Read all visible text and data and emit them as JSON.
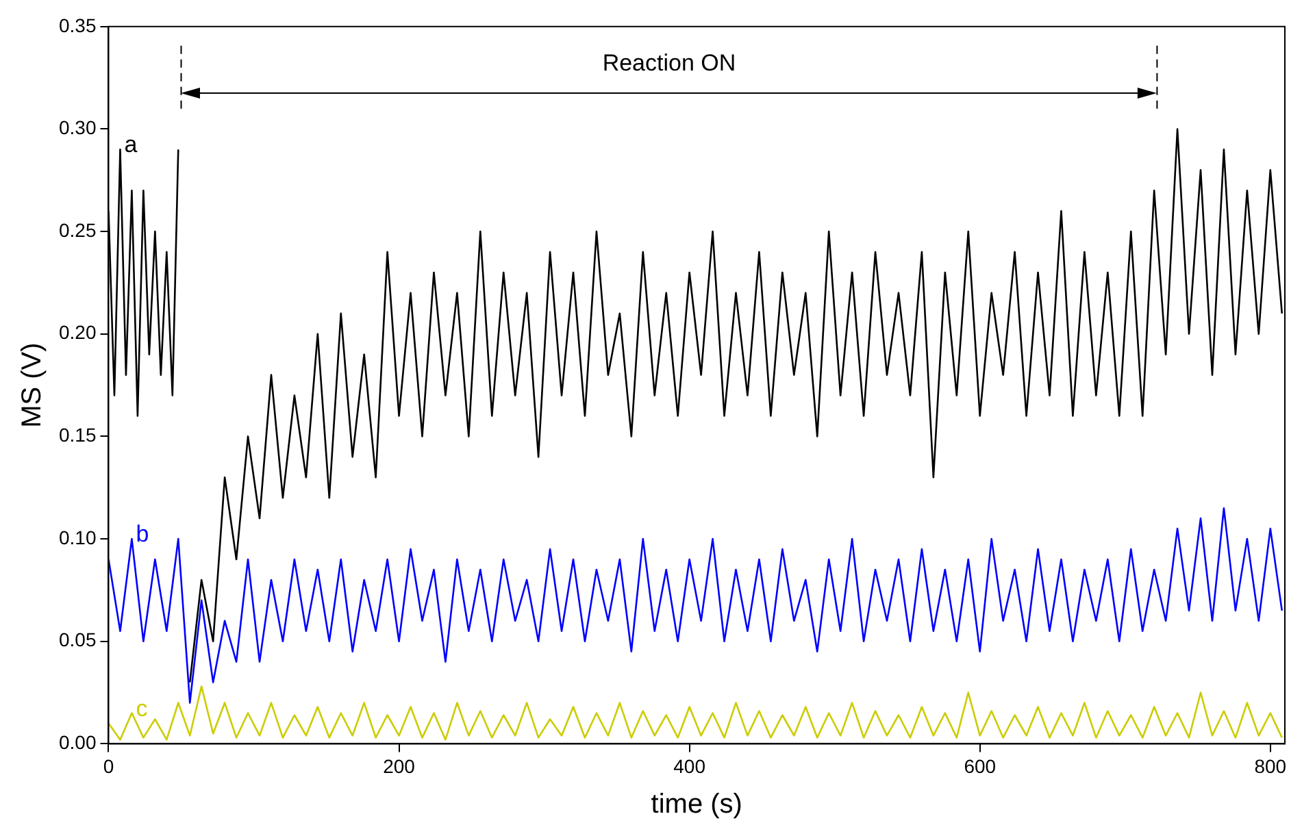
{
  "chart_data": {
    "type": "line",
    "xlabel": "time (s)",
    "ylabel": "MS (V)",
    "xlim": [
      0,
      810
    ],
    "xticks": [
      0,
      200,
      400,
      600,
      800
    ],
    "ylim": [
      0,
      0.35
    ],
    "yticks": [
      {
        "value": 0,
        "label": "0.00"
      },
      {
        "value": 0.05,
        "label": "0.05"
      },
      {
        "value": 0.1,
        "label": "0.10"
      },
      {
        "value": 0.15,
        "label": "0.15"
      },
      {
        "value": 0.2,
        "label": "0.20"
      },
      {
        "value": 0.25,
        "label": "0.25"
      },
      {
        "value": 0.3,
        "label": "0.30"
      },
      {
        "value": 0.35,
        "label": "0.35"
      }
    ],
    "grid": false,
    "legend": false,
    "marker": "none",
    "line_style": "solid",
    "ref_lines": [
      {
        "axis": "x",
        "value": 50,
        "label": null,
        "line_style": "dashed",
        "color": "#000000"
      },
      {
        "axis": "x",
        "value": 722,
        "label": null,
        "line_style": "dashed",
        "color": "#000000"
      }
    ],
    "annotations": [
      "Reaction ON"
    ],
    "series": [
      {
        "name": "a",
        "color": "#000000",
        "x": [
          0,
          4,
          8,
          12,
          16,
          20,
          24,
          28,
          32,
          36,
          40,
          44,
          48,
          52,
          56,
          64,
          72,
          80,
          88,
          96,
          104,
          112,
          120,
          128,
          136,
          144,
          152,
          160,
          168,
          176,
          184,
          192,
          200,
          208,
          216,
          224,
          232,
          240,
          248,
          256,
          264,
          272,
          280,
          288,
          296,
          304,
          312,
          320,
          328,
          336,
          344,
          352,
          360,
          368,
          376,
          384,
          392,
          400,
          408,
          416,
          424,
          432,
          440,
          448,
          456,
          464,
          472,
          480,
          488,
          496,
          504,
          512,
          520,
          528,
          536,
          544,
          552,
          560,
          568,
          576,
          584,
          592,
          600,
          608,
          616,
          624,
          632,
          640,
          648,
          656,
          664,
          672,
          680,
          688,
          696,
          704,
          712,
          720,
          728,
          736,
          744,
          752,
          760,
          768,
          776,
          784,
          792,
          800,
          808
        ],
        "values": [
          0.26,
          0.17,
          0.29,
          0.18,
          0.27,
          0.16,
          0.27,
          0.19,
          0.25,
          0.18,
          0.24,
          0.17,
          0.29,
          null,
          0.03,
          0.08,
          0.05,
          0.13,
          0.09,
          0.15,
          0.11,
          0.18,
          0.12,
          0.17,
          0.13,
          0.2,
          0.12,
          0.21,
          0.14,
          0.19,
          0.13,
          0.24,
          0.16,
          0.22,
          0.15,
          0.23,
          0.17,
          0.22,
          0.15,
          0.25,
          0.16,
          0.23,
          0.17,
          0.22,
          0.14,
          0.24,
          0.17,
          0.23,
          0.16,
          0.25,
          0.18,
          0.21,
          0.15,
          0.24,
          0.17,
          0.22,
          0.16,
          0.23,
          0.18,
          0.25,
          0.16,
          0.22,
          0.17,
          0.24,
          0.16,
          0.23,
          0.18,
          0.22,
          0.15,
          0.25,
          0.17,
          0.23,
          0.16,
          0.24,
          0.18,
          0.22,
          0.17,
          0.24,
          0.13,
          0.23,
          0.17,
          0.25,
          0.16,
          0.22,
          0.18,
          0.24,
          0.16,
          0.23,
          0.17,
          0.26,
          0.16,
          0.24,
          0.17,
          0.23,
          0.16,
          0.25,
          0.16,
          0.27,
          0.19,
          0.3,
          0.2,
          0.28,
          0.18,
          0.29,
          0.19,
          0.27,
          0.2,
          0.28,
          0.21
        ]
      },
      {
        "name": "b",
        "color": "#0000ff",
        "x": [
          0,
          8,
          16,
          24,
          32,
          40,
          48,
          56,
          64,
          72,
          80,
          88,
          96,
          104,
          112,
          120,
          128,
          136,
          144,
          152,
          160,
          168,
          176,
          184,
          192,
          200,
          208,
          216,
          224,
          232,
          240,
          248,
          256,
          264,
          272,
          280,
          288,
          296,
          304,
          312,
          320,
          328,
          336,
          344,
          352,
          360,
          368,
          376,
          384,
          392,
          400,
          408,
          416,
          424,
          432,
          440,
          448,
          456,
          464,
          472,
          480,
          488,
          496,
          504,
          512,
          520,
          528,
          536,
          544,
          552,
          560,
          568,
          576,
          584,
          592,
          600,
          608,
          616,
          624,
          632,
          640,
          648,
          656,
          664,
          672,
          680,
          688,
          696,
          704,
          712,
          720,
          728,
          736,
          744,
          752,
          760,
          768,
          776,
          784,
          792,
          800,
          808
        ],
        "values": [
          0.09,
          0.055,
          0.1,
          0.05,
          0.09,
          0.055,
          0.1,
          0.02,
          0.07,
          0.03,
          0.06,
          0.04,
          0.09,
          0.04,
          0.08,
          0.05,
          0.09,
          0.055,
          0.085,
          0.05,
          0.09,
          0.045,
          0.08,
          0.055,
          0.09,
          0.05,
          0.095,
          0.06,
          0.085,
          0.04,
          0.09,
          0.055,
          0.085,
          0.05,
          0.09,
          0.06,
          0.08,
          0.05,
          0.095,
          0.055,
          0.09,
          0.05,
          0.085,
          0.06,
          0.09,
          0.045,
          0.1,
          0.055,
          0.085,
          0.05,
          0.09,
          0.06,
          0.1,
          0.05,
          0.085,
          0.055,
          0.09,
          0.05,
          0.095,
          0.06,
          0.08,
          0.045,
          0.09,
          0.055,
          0.1,
          0.05,
          0.085,
          0.06,
          0.09,
          0.05,
          0.095,
          0.055,
          0.085,
          0.05,
          0.09,
          0.045,
          0.1,
          0.06,
          0.085,
          0.05,
          0.095,
          0.055,
          0.09,
          0.05,
          0.085,
          0.06,
          0.09,
          0.05,
          0.095,
          0.055,
          0.085,
          0.06,
          0.105,
          0.065,
          0.11,
          0.06,
          0.115,
          0.065,
          0.1,
          0.06,
          0.105,
          0.065
        ]
      },
      {
        "name": "c",
        "color": "#cccc00",
        "x": [
          0,
          8,
          16,
          24,
          32,
          40,
          48,
          56,
          64,
          72,
          80,
          88,
          96,
          104,
          112,
          120,
          128,
          136,
          144,
          152,
          160,
          168,
          176,
          184,
          192,
          200,
          208,
          216,
          224,
          232,
          240,
          248,
          256,
          264,
          272,
          280,
          288,
          296,
          304,
          312,
          320,
          328,
          336,
          344,
          352,
          360,
          368,
          376,
          384,
          392,
          400,
          408,
          416,
          424,
          432,
          440,
          448,
          456,
          464,
          472,
          480,
          488,
          496,
          504,
          512,
          520,
          528,
          536,
          544,
          552,
          560,
          568,
          576,
          584,
          592,
          600,
          608,
          616,
          624,
          632,
          640,
          648,
          656,
          664,
          672,
          680,
          688,
          696,
          704,
          712,
          720,
          728,
          736,
          744,
          752,
          760,
          768,
          776,
          784,
          792,
          800,
          808
        ],
        "values": [
          0.01,
          0.002,
          0.015,
          0.003,
          0.012,
          0.002,
          0.02,
          0.004,
          0.028,
          0.005,
          0.02,
          0.003,
          0.015,
          0.004,
          0.02,
          0.003,
          0.014,
          0.004,
          0.018,
          0.003,
          0.015,
          0.004,
          0.02,
          0.003,
          0.014,
          0.004,
          0.018,
          0.003,
          0.015,
          0.002,
          0.02,
          0.004,
          0.016,
          0.003,
          0.014,
          0.004,
          0.02,
          0.003,
          0.012,
          0.004,
          0.018,
          0.003,
          0.015,
          0.004,
          0.02,
          0.003,
          0.016,
          0.004,
          0.014,
          0.003,
          0.018,
          0.004,
          0.015,
          0.003,
          0.02,
          0.004,
          0.016,
          0.003,
          0.014,
          0.004,
          0.018,
          0.003,
          0.015,
          0.004,
          0.02,
          0.003,
          0.016,
          0.004,
          0.014,
          0.003,
          0.018,
          0.004,
          0.015,
          0.003,
          0.025,
          0.004,
          0.016,
          0.003,
          0.014,
          0.004,
          0.018,
          0.003,
          0.015,
          0.004,
          0.02,
          0.003,
          0.016,
          0.004,
          0.014,
          0.003,
          0.018,
          0.004,
          0.015,
          0.003,
          0.025,
          0.004,
          0.016,
          0.003,
          0.02,
          0.004,
          0.015,
          0.003
        ]
      }
    ]
  }
}
